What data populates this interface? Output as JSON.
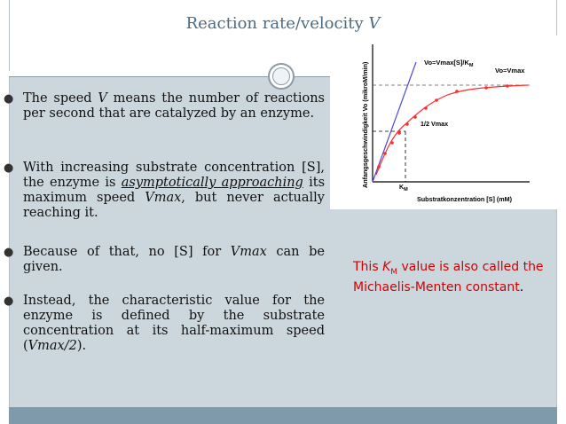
{
  "slide": {
    "title_prefix": "Reaction rate/velocity ",
    "title_var": "V"
  },
  "bullets": [
    {
      "parts": [
        "The speed ",
        "V",
        " means the number of reactions per second that are catalyzed by an enzyme."
      ]
    },
    {
      "parts": [
        "With increasing substrate concentration [S], the enzyme is ",
        "asymptotically approaching",
        " its maximum speed ",
        "Vmax",
        ", but never actually reaching it."
      ]
    },
    {
      "parts": [
        "Because of that, no [S] for ",
        "Vmax",
        " can be given."
      ]
    },
    {
      "parts": [
        "Instead, the characteristic value for the enzyme is defined by the substrate concentration at its half-maximum speed (",
        "Vmax/2",
        ")."
      ]
    }
  ],
  "graph": {
    "y_label": "Anfangsgeschwindigkeit Vo (mikroM/min)",
    "x_label": "Substratkonzentration [S] (mM)",
    "line_label": "Vo=Vmax[S]/K",
    "line_label_sub": "M",
    "vmax_label": "Vo=Vmax",
    "half_vmax_label": "1/2 Vmax",
    "km_label": "K",
    "km_sub": "M",
    "colors": {
      "curve": "#ff2a2a",
      "line": "#4b4bd8",
      "axis": "#000000"
    }
  },
  "note": {
    "pre": "This ",
    "k": "K",
    "k_sub": "M",
    "line1_rest": " value is also called the",
    "line2": "Michaelis-Menten constant",
    "line2_end": "."
  }
}
